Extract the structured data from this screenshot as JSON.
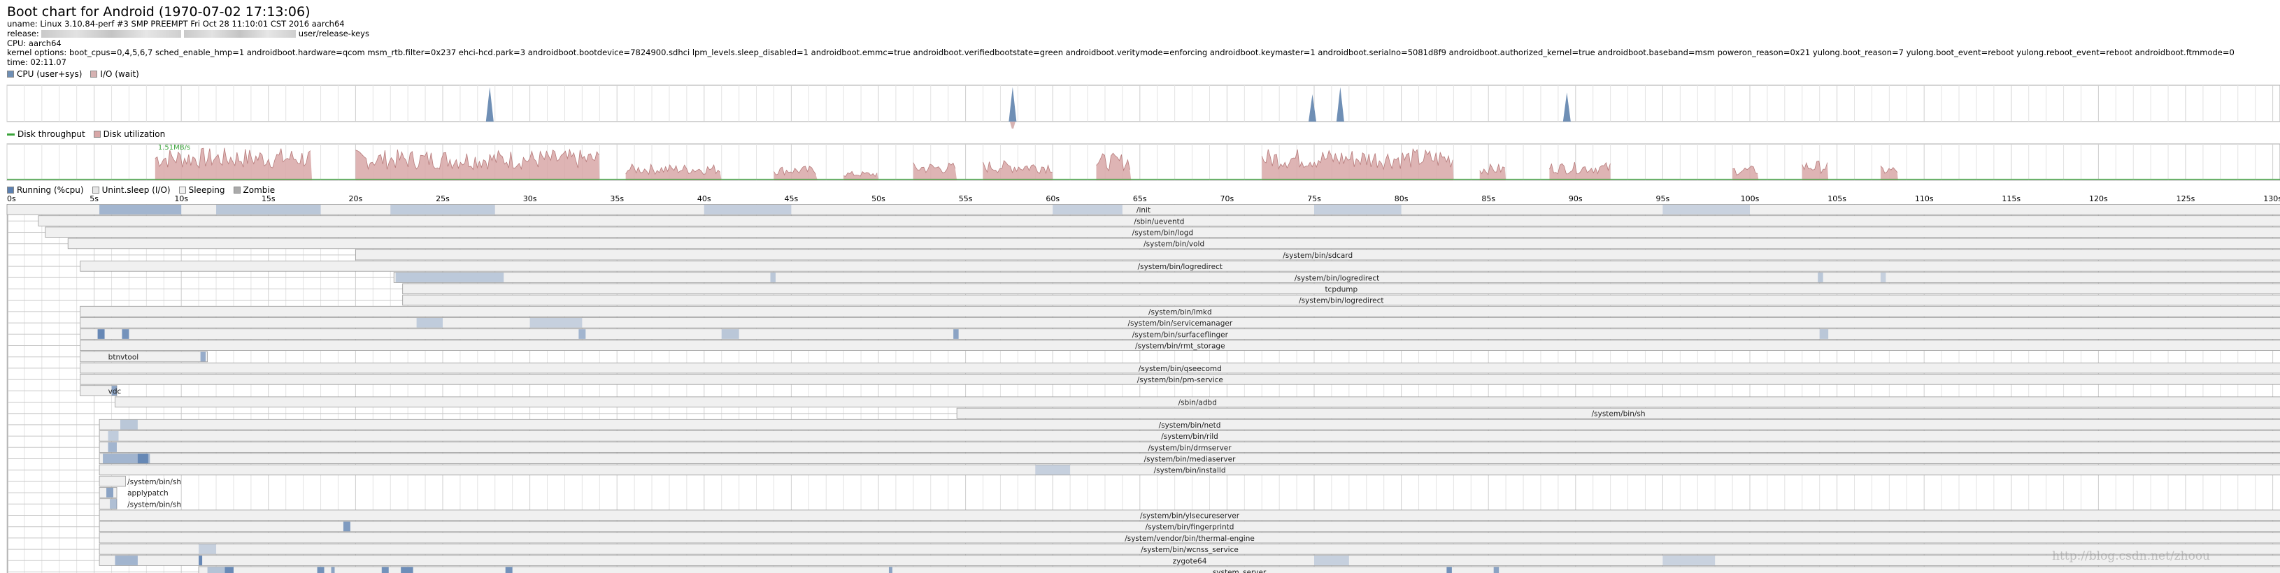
{
  "header": {
    "title": "Boot chart for Android (1970-07-02 17:13:06)",
    "uname_prefix": "uname: Linux 3.10.84-perf #3 SMP PREEMPT Fri Oct 28 11:10:01 CST 2016 aarch64",
    "release_prefix": "release:",
    "release_suffix": "user/release-keys",
    "cpu": "CPU: aarch64",
    "kernel_options": "kernel options: boot_cpus=0,4,5,6,7 sched_enable_hmp=1 androidboot.hardware=qcom msm_rtb.filter=0x237 ehci-hcd.park=3 androidboot.bootdevice=7824900.sdhci lpm_levels.sleep_disabled=1 androidboot.emmc=true androidboot.verifiedbootstate=green androidboot.veritymode=enforcing androidboot.keymaster=1 androidboot.serialno=5081d8f9 androidboot.authorized_kernel=true androidboot.baseband=msm poweron_reason=0x21 yulong.boot_reason=7 yulong.boot_event=reboot yulong.reboot_event=reboot androidboot.ftmmode=0",
    "time": "time: 02:11.07"
  },
  "legend_cpu": {
    "cpu": "CPU (user+sys)",
    "io": "I/O (wait)"
  },
  "legend_disk": {
    "throughput": "Disk throughput",
    "util": "Disk utilization",
    "peak_label": "1.51MB/s"
  },
  "legend_proc": {
    "running": "Running (%cpu)",
    "unint": "Unint.sleep (I/O)",
    "sleeping": "Sleeping",
    "zombie": "Zombie"
  },
  "colors": {
    "cpu": "#6f8fb5",
    "io": "#d6b2b2",
    "disk_util": "#d8a7a7",
    "disk_util_edge": "#b67b7b",
    "throughput": "#3aa33a",
    "running": "#5b7fb0",
    "unint": "#e6e6e6",
    "sleeping": "#f0f0f0",
    "zombie": "#aaaaaa",
    "grid": "#e3e3e3",
    "proc_border": "#999999"
  },
  "watermark": "http://blog.csdn.net/zhoou",
  "chart_data": [
    {
      "type": "area",
      "name": "cpu",
      "xlabel": "",
      "xlim": [
        0,
        130
      ],
      "ylim": [
        0,
        100
      ],
      "x_ticks": [
        "0s",
        "5s",
        "10s",
        "15s",
        "20s",
        "25s",
        "30s",
        "35s",
        "40s",
        "45s",
        "50s",
        "55s",
        "60s",
        "65s",
        "70s",
        "75s",
        "80s",
        "85s",
        "90s",
        "95s",
        "100s",
        "105s",
        "110s",
        "115s",
        "120s",
        "125s",
        "130s"
      ],
      "series": [
        {
          "name": "CPU (user+sys)",
          "spikes": [
            [
              27.7,
              95
            ],
            [
              57.7,
              95
            ],
            [
              74.9,
              75
            ],
            [
              76.5,
              95
            ],
            [
              89.5,
              80
            ]
          ]
        },
        {
          "name": "I/O (wait)",
          "spikes": [
            [
              57.7,
              25
            ]
          ]
        }
      ]
    },
    {
      "type": "area",
      "name": "disk",
      "xlim": [
        0,
        130
      ],
      "ylim": [
        0,
        100
      ],
      "series": [
        {
          "name": "Disk utilization",
          "bursts": [
            [
              8.5,
              17.5,
              90
            ],
            [
              20.0,
              34.0,
              85
            ],
            [
              35.5,
              41.0,
              45
            ],
            [
              44.0,
              46.5,
              40
            ],
            [
              48.0,
              50.0,
              25
            ],
            [
              52.0,
              54.5,
              50
            ],
            [
              56.0,
              60.0,
              55
            ],
            [
              62.5,
              64.5,
              75
            ],
            [
              72.0,
              83.0,
              88
            ],
            [
              84.5,
              86.0,
              45
            ],
            [
              88.5,
              92.0,
              50
            ],
            [
              99.0,
              100.5,
              40
            ],
            [
              103.0,
              104.5,
              55
            ],
            [
              107.5,
              108.5,
              40
            ]
          ]
        },
        {
          "name": "Disk throughput",
          "peaks": [
            [
              8.5,
              100
            ]
          ]
        }
      ]
    },
    {
      "type": "gantt",
      "name": "processes",
      "xlim": [
        0,
        130
      ],
      "processes": [
        {
          "name": "/init",
          "start": 0.0,
          "runs": [
            [
              5.3,
              10,
              40
            ],
            [
              12,
              18,
              20
            ],
            [
              22,
              28,
              15
            ],
            [
              40,
              45,
              12
            ],
            [
              60,
              64,
              10
            ],
            [
              75,
              80,
              10
            ],
            [
              95,
              100,
              8
            ]
          ]
        },
        {
          "name": "/sbin/ueventd",
          "start": 1.8,
          "runs": []
        },
        {
          "name": "/system/bin/logd",
          "start": 2.2,
          "runs": []
        },
        {
          "name": "/system/bin/vold",
          "start": 3.5,
          "runs": []
        },
        {
          "name": "/system/bin/sdcard",
          "start": 20.0,
          "runs": []
        },
        {
          "name": "/system/bin/logredirect",
          "start": 4.2,
          "runs": []
        },
        {
          "name": "/system/bin/logredirect",
          "start": 22.2,
          "runs": [
            [
              22.3,
              28.5,
              18
            ],
            [
              43.8,
              44.1,
              20
            ],
            [
              103.9,
              104.2,
              20
            ],
            [
              107.5,
              107.8,
              10
            ]
          ]
        },
        {
          "name": "tcpdump",
          "start": 22.7,
          "runs": []
        },
        {
          "name": "/system/bin/logredirect",
          "start": 22.7,
          "runs": []
        },
        {
          "name": "/system/bin/lmkd",
          "start": 4.2,
          "runs": []
        },
        {
          "name": "/system/bin/servicemanager",
          "start": 4.2,
          "runs": [
            [
              23.5,
              25,
              15
            ],
            [
              30,
              33,
              10
            ]
          ]
        },
        {
          "name": "/system/bin/surfaceflinger",
          "start": 4.2,
          "runs": [
            [
              5.2,
              5.6,
              90
            ],
            [
              6.6,
              7.0,
              80
            ],
            [
              32.8,
              33.2,
              40
            ],
            [
              41,
              42,
              20
            ],
            [
              54.3,
              54.6,
              60
            ],
            [
              104,
              104.5,
              20
            ]
          ]
        },
        {
          "name": "/system/bin/rmt_storage",
          "start": 4.2,
          "runs": []
        },
        {
          "name": "btnvtool",
          "start": 4.2,
          "end": 11.5,
          "runs": [
            [
              11.1,
              11.4,
              50
            ]
          ]
        },
        {
          "name": "/system/bin/qseecomd",
          "start": 4.2,
          "runs": []
        },
        {
          "name": "/system/bin/pm-service",
          "start": 4.2,
          "runs": []
        },
        {
          "name": "vdc",
          "start": 4.2,
          "end": 6.3,
          "runs": [
            [
              6.0,
              6.3,
              60
            ]
          ]
        },
        {
          "name": "/sbin/adbd",
          "start": 6.2,
          "runs": []
        },
        {
          "name": "/system/bin/sh",
          "start": 54.5,
          "runs": []
        },
        {
          "name": "/system/bin/netd",
          "start": 5.3,
          "runs": [
            [
              6.5,
              7.5,
              20
            ]
          ]
        },
        {
          "name": "/system/bin/rild",
          "start": 5.3,
          "runs": [
            [
              5.8,
              6.4,
              15
            ]
          ]
        },
        {
          "name": "/system/bin/drmserver",
          "start": 5.3,
          "runs": [
            [
              5.8,
              6.3,
              40
            ]
          ]
        },
        {
          "name": "/system/bin/mediaserver",
          "start": 5.3,
          "runs": [
            [
              5.5,
              8.2,
              40
            ],
            [
              7.5,
              8.1,
              80
            ]
          ]
        },
        {
          "name": "/system/bin/installd",
          "start": 5.3,
          "runs": [
            [
              59,
              61,
              10
            ]
          ]
        },
        {
          "name": "/system/bin/sh",
          "start": 5.3,
          "end": 6.8,
          "runs": []
        },
        {
          "name": "applypatch",
          "start": 5.3,
          "end": 6.3,
          "runs": [
            [
              5.7,
              6.1,
              60
            ]
          ]
        },
        {
          "name": "/system/bin/sh",
          "start": 5.3,
          "end": 6.3,
          "runs": [
            [
              5.9,
              6.3,
              30
            ]
          ]
        },
        {
          "name": "/system/bin/ylsecureserver",
          "start": 5.3,
          "runs": []
        },
        {
          "name": "/system/bin/fingerprintd",
          "start": 5.3,
          "runs": [
            [
              19.3,
              19.7,
              70
            ]
          ]
        },
        {
          "name": "/system/vendor/bin/thermal-engine",
          "start": 5.3,
          "runs": []
        },
        {
          "name": "/system/bin/wcnss_service",
          "start": 5.3,
          "runs": [
            [
              11.0,
              12.0,
              10
            ]
          ]
        },
        {
          "name": "zygote64",
          "start": 5.3,
          "runs": [
            [
              6.2,
              7.5,
              40
            ],
            [
              11.0,
              11.2,
              90
            ],
            [
              75,
              77,
              10
            ],
            [
              95,
              98,
              8
            ]
          ]
        },
        {
          "name": "system_server",
          "start": 11.0,
          "runs": [
            [
              11.5,
              13.0,
              25
            ],
            [
              12.5,
              13.0,
              80
            ],
            [
              17.8,
              18.2,
              80
            ],
            [
              18.6,
              18.8,
              60
            ],
            [
              21.5,
              21.9,
              80
            ],
            [
              22.6,
              23.3,
              85
            ],
            [
              28.6,
              29.0,
              80
            ],
            [
              50.6,
              50.8,
              60
            ],
            [
              82.6,
              82.9,
              80
            ],
            [
              85.3,
              85.6,
              60
            ]
          ]
        }
      ]
    }
  ]
}
